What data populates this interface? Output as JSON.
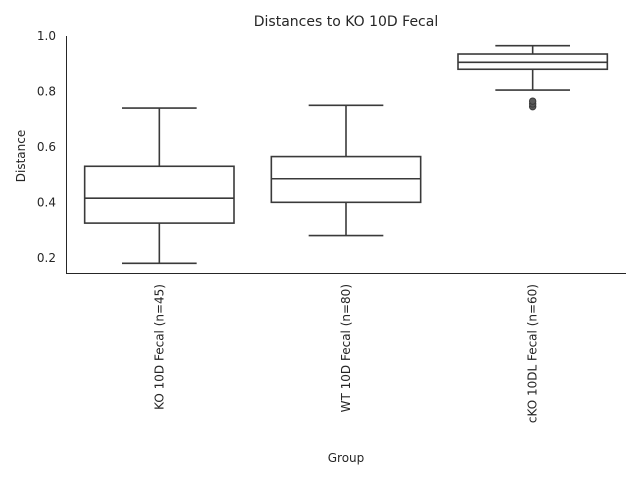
{
  "chart_data": {
    "type": "box",
    "title": "Distances to KO 10D Fecal",
    "xlabel": "Group",
    "ylabel": "Distance",
    "ylim": [
      0.145,
      1.0
    ],
    "yticks": [
      "0.2",
      "0.4",
      "0.6",
      "0.8",
      "1.0"
    ],
    "grid": false,
    "categories": [
      "KO 10D Fecal (n=45)",
      "WT 10D Fecal (n=80)",
      "cKO 10DL Fecal (n=60)"
    ],
    "boxes": [
      {
        "whislo": 0.18,
        "q1": 0.325,
        "med": 0.415,
        "q3": 0.53,
        "whishi": 0.74,
        "fliers": []
      },
      {
        "whislo": 0.28,
        "q1": 0.4,
        "med": 0.485,
        "q3": 0.565,
        "whishi": 0.75,
        "fliers": []
      },
      {
        "whislo": 0.805,
        "q1": 0.88,
        "med": 0.905,
        "q3": 0.935,
        "whishi": 0.965,
        "fliers": [
          0.745,
          0.755,
          0.765
        ]
      }
    ]
  }
}
